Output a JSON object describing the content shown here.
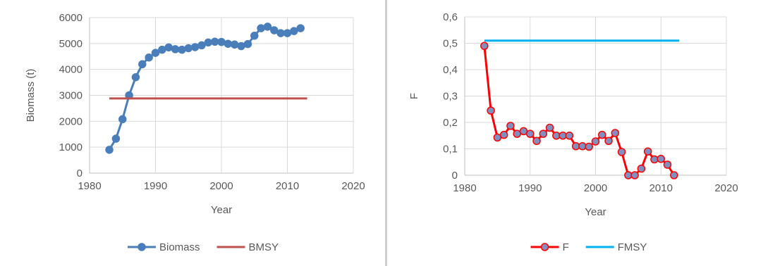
{
  "charts": [
    {
      "type": "line",
      "xlabel": "Year",
      "ylabel": "Biomass (t)",
      "xlim": [
        1980,
        2020
      ],
      "ylim": [
        0,
        6000
      ],
      "xticks": [
        1980,
        1990,
        2000,
        2010,
        2020
      ],
      "yticks": [
        0,
        1000,
        2000,
        3000,
        4000,
        5000,
        6000
      ],
      "xtick_labels": [
        "1980",
        "1990",
        "2000",
        "2010",
        "2020"
      ],
      "ytick_labels": [
        "0",
        "1000",
        "2000",
        "3000",
        "4000",
        "5000",
        "6000"
      ],
      "grid": true,
      "legend_position": "bottom",
      "series": [
        {
          "name": "Biomass",
          "color": "#4a7ebb",
          "marker": "circle",
          "marker_fill": "#4a7ebb",
          "marker_edge": "#4a7ebb",
          "x": [
            1983,
            1984,
            1985,
            1986,
            1987,
            1988,
            1989,
            1990,
            1991,
            1992,
            1993,
            1994,
            1995,
            1996,
            1997,
            1998,
            1999,
            2000,
            2001,
            2002,
            2003,
            2004,
            2005,
            2006,
            2007,
            2008,
            2009,
            2010,
            2011,
            2012
          ],
          "y": [
            900,
            1330,
            2080,
            3000,
            3700,
            4200,
            4460,
            4640,
            4760,
            4850,
            4780,
            4760,
            4820,
            4860,
            4930,
            5040,
            5070,
            5060,
            4990,
            4960,
            4900,
            4980,
            5300,
            5590,
            5650,
            5510,
            5400,
            5400,
            5480,
            5590
          ]
        },
        {
          "name": "BMSY",
          "color": "#c0504d",
          "marker": "none",
          "x": [
            1983,
            2013
          ],
          "y": [
            2880,
            2880
          ]
        }
      ]
    },
    {
      "type": "line",
      "xlabel": "Year",
      "ylabel": "F",
      "xlim": [
        1980,
        2020
      ],
      "ylim": [
        0,
        0.6
      ],
      "xticks": [
        1980,
        1990,
        2000,
        2010,
        2020
      ],
      "yticks": [
        0,
        0.1,
        0.2,
        0.3,
        0.4,
        0.5,
        0.6
      ],
      "xtick_labels": [
        "1980",
        "1990",
        "2000",
        "2010",
        "2020"
      ],
      "ytick_labels": [
        "0",
        "0,1",
        "0,2",
        "0,3",
        "0,4",
        "0,5",
        "0,6"
      ],
      "grid": true,
      "legend_position": "bottom",
      "series": [
        {
          "name": "F",
          "color": "#ff0000",
          "marker": "circle",
          "marker_fill": "#7f8fbf",
          "marker_edge": "#ff0000",
          "x": [
            1983,
            1984,
            1985,
            1986,
            1987,
            1988,
            1989,
            1990,
            1991,
            1992,
            1993,
            1994,
            1995,
            1996,
            1997,
            1998,
            1999,
            2000,
            2001,
            2002,
            2003,
            2004,
            2005,
            2006,
            2007,
            2008,
            2009,
            2010,
            2011,
            2012
          ],
          "y": [
            0.49,
            0.245,
            0.143,
            0.153,
            0.187,
            0.157,
            0.167,
            0.157,
            0.13,
            0.157,
            0.18,
            0.15,
            0.15,
            0.15,
            0.11,
            0.11,
            0.108,
            0.128,
            0.153,
            0.13,
            0.16,
            0.088,
            0.0,
            0.0,
            0.025,
            0.09,
            0.06,
            0.062,
            0.04,
            0.0
          ]
        },
        {
          "name": "FMSY",
          "color": "#00b0f0",
          "marker": "none",
          "x": [
            1983,
            2012.8
          ],
          "y": [
            0.51,
            0.51
          ]
        }
      ]
    }
  ]
}
